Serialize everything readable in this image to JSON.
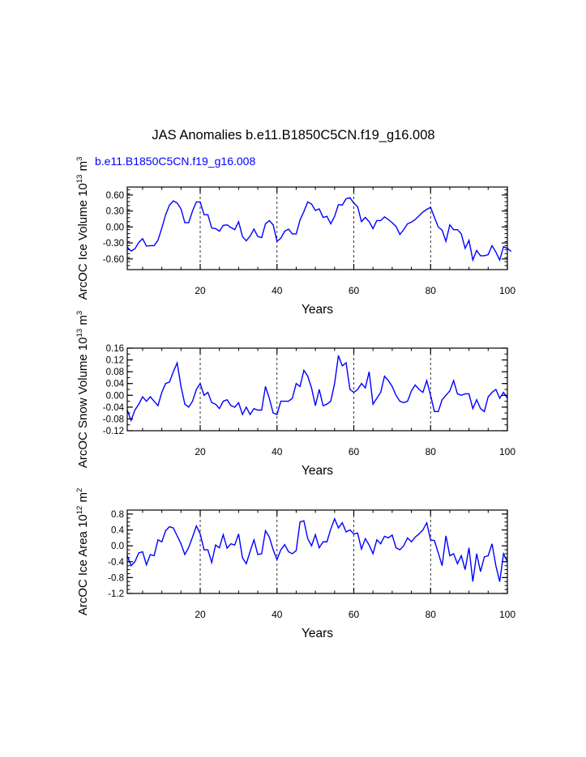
{
  "title": "JAS Anomalies b.e11.B1850C5CN.f19_g16.008",
  "legend_label": "b.e11.B1850C5CN.f19_g16.008",
  "series_color": "#0000ff",
  "chart_data": [
    {
      "type": "line",
      "ylabel": "ArcOC Ice Volume 10",
      "ylabel_exp": "13",
      "ylabel_unit": " m",
      "ylabel_unit_exp": "3",
      "xlabel": "Years",
      "xlim": [
        1,
        100
      ],
      "ylim": [
        -0.8,
        0.75
      ],
      "yticks": [
        -0.6,
        -0.3,
        0.0,
        0.3,
        0.6
      ],
      "ytick_labels": [
        "-0.60",
        "-0.30",
        "0.00",
        "0.30",
        "0.60"
      ],
      "yminor_step": 0.075,
      "xticks": [
        20,
        40,
        60,
        80,
        100
      ],
      "xtick_labels": [
        "20",
        "40",
        "60",
        "80",
        "100"
      ],
      "vlines": [
        20,
        40,
        60,
        80
      ],
      "series": [
        {
          "name": "b.e11.B1850C5CN.f19_g16.008",
          "values": [
            -0.38,
            -0.45,
            -0.41,
            -0.29,
            -0.22,
            -0.36,
            -0.35,
            -0.35,
            -0.25,
            -0.02,
            0.23,
            0.41,
            0.49,
            0.45,
            0.34,
            0.08,
            0.08,
            0.3,
            0.47,
            0.47,
            0.23,
            0.23,
            -0.02,
            -0.03,
            -0.08,
            0.03,
            0.04,
            -0.01,
            -0.05,
            0.1,
            -0.18,
            -0.26,
            -0.17,
            -0.04,
            -0.18,
            -0.2,
            0.06,
            0.12,
            0.04,
            -0.27,
            -0.21,
            -0.08,
            -0.04,
            -0.13,
            -0.13,
            0.13,
            0.29,
            0.47,
            0.43,
            0.31,
            0.34,
            0.18,
            0.2,
            0.06,
            0.2,
            0.42,
            0.41,
            0.53,
            0.55,
            0.45,
            0.38,
            0.1,
            0.18,
            0.1,
            -0.03,
            0.12,
            0.12,
            0.19,
            0.14,
            0.08,
            0.01,
            -0.14,
            -0.05,
            0.06,
            0.09,
            0.14,
            0.21,
            0.28,
            0.33,
            0.37,
            0.18,
            0.0,
            -0.06,
            -0.27,
            0.04,
            -0.05,
            -0.05,
            -0.13,
            -0.4,
            -0.25,
            -0.62,
            -0.44,
            -0.54,
            -0.54,
            -0.52,
            -0.35,
            -0.47,
            -0.62,
            -0.37,
            -0.4,
            -0.46
          ]
        }
      ]
    },
    {
      "type": "line",
      "ylabel": "ArcOC Snow Volume 10",
      "ylabel_exp": "13",
      "ylabel_unit": " m",
      "ylabel_unit_exp": "3",
      "xlabel": "Years",
      "xlim": [
        1,
        100
      ],
      "ylim": [
        -0.12,
        0.16
      ],
      "yticks": [
        -0.12,
        -0.08,
        -0.04,
        0.0,
        0.04,
        0.08,
        0.12,
        0.16
      ],
      "ytick_labels": [
        "-0.12",
        "-0.08",
        "-0.04",
        "0.00",
        "0.04",
        "0.08",
        "0.12",
        "0.16"
      ],
      "yminor_step": 0.02,
      "xticks": [
        20,
        40,
        60,
        80,
        100
      ],
      "xtick_labels": [
        "20",
        "40",
        "60",
        "80",
        "100"
      ],
      "vlines": [
        20,
        40,
        60,
        80
      ],
      "series": [
        {
          "name": "b.e11.B1850C5CN.f19_g16.008",
          "values": [
            -0.05,
            -0.085,
            -0.05,
            -0.03,
            -0.005,
            -0.02,
            -0.005,
            -0.02,
            -0.035,
            0.01,
            0.04,
            0.045,
            0.08,
            0.11,
            0.03,
            -0.03,
            -0.04,
            -0.02,
            0.02,
            0.04,
            0.0,
            0.01,
            -0.025,
            -0.03,
            -0.045,
            -0.02,
            -0.015,
            -0.035,
            -0.04,
            -0.025,
            -0.065,
            -0.04,
            -0.065,
            -0.045,
            -0.05,
            -0.05,
            0.03,
            -0.01,
            -0.06,
            -0.065,
            -0.02,
            -0.02,
            -0.02,
            -0.01,
            0.04,
            0.03,
            0.085,
            0.065,
            0.025,
            -0.035,
            0.02,
            -0.035,
            -0.03,
            -0.02,
            0.04,
            0.135,
            0.1,
            0.11,
            0.02,
            0.01,
            0.02,
            0.04,
            0.025,
            0.08,
            -0.03,
            -0.01,
            0.01,
            0.065,
            0.05,
            0.03,
            0.0,
            -0.02,
            -0.025,
            -0.02,
            0.015,
            0.035,
            0.02,
            0.01,
            0.05,
            0.0,
            -0.055,
            -0.055,
            -0.015,
            0.0,
            0.015,
            0.05,
            0.005,
            0.0,
            0.005,
            0.005,
            -0.045,
            -0.015,
            -0.045,
            -0.055,
            -0.005,
            0.01,
            0.02,
            -0.01,
            0.01,
            -0.01
          ]
        }
      ]
    },
    {
      "type": "line",
      "ylabel": "ArcOC Ice Area 10",
      "ylabel_exp": "12",
      "ylabel_unit": " m",
      "ylabel_unit_exp": "2",
      "xlabel": "Years",
      "xlim": [
        1,
        100
      ],
      "ylim": [
        -1.2,
        0.9
      ],
      "yticks": [
        -1.2,
        -0.8,
        -0.4,
        0.0,
        0.4,
        0.8
      ],
      "ytick_labels": [
        "-1.2",
        "-0.8",
        "-0.4",
        "0.0",
        "0.4",
        "0.8"
      ],
      "yminor_step": 0.1,
      "xticks": [
        20,
        40,
        60,
        80,
        100
      ],
      "xtick_labels": [
        "20",
        "40",
        "60",
        "80",
        "100"
      ],
      "vlines": [
        20,
        40,
        60,
        80
      ],
      "series": [
        {
          "name": "b.e11.B1850C5CN.f19_g16.008",
          "values": [
            -0.25,
            -0.5,
            -0.4,
            -0.18,
            -0.15,
            -0.48,
            -0.22,
            -0.25,
            0.15,
            0.1,
            0.38,
            0.48,
            0.45,
            0.25,
            0.05,
            -0.22,
            -0.04,
            0.22,
            0.5,
            0.3,
            -0.1,
            -0.1,
            -0.42,
            0.02,
            -0.05,
            0.28,
            -0.06,
            0.05,
            0.02,
            0.3,
            -0.3,
            -0.45,
            -0.14,
            0.15,
            -0.22,
            -0.2,
            0.38,
            0.22,
            -0.1,
            -0.35,
            -0.1,
            0.03,
            -0.15,
            -0.2,
            -0.12,
            0.6,
            0.63,
            0.18,
            0.0,
            0.28,
            -0.05,
            0.1,
            0.1,
            0.42,
            0.68,
            0.45,
            0.58,
            0.35,
            0.4,
            0.3,
            0.32,
            -0.08,
            0.18,
            0.02,
            -0.2,
            0.15,
            0.05,
            0.24,
            0.2,
            0.27,
            -0.05,
            -0.1,
            0.0,
            0.2,
            0.1,
            0.22,
            0.3,
            0.4,
            0.58,
            0.15,
            0.13,
            -0.18,
            -0.5,
            0.25,
            -0.25,
            -0.2,
            -0.45,
            -0.25,
            -0.6,
            -0.05,
            -0.9,
            -0.2,
            -0.65,
            -0.28,
            -0.25,
            0.05,
            -0.5,
            -0.9,
            -0.2,
            -0.4
          ]
        }
      ]
    }
  ]
}
